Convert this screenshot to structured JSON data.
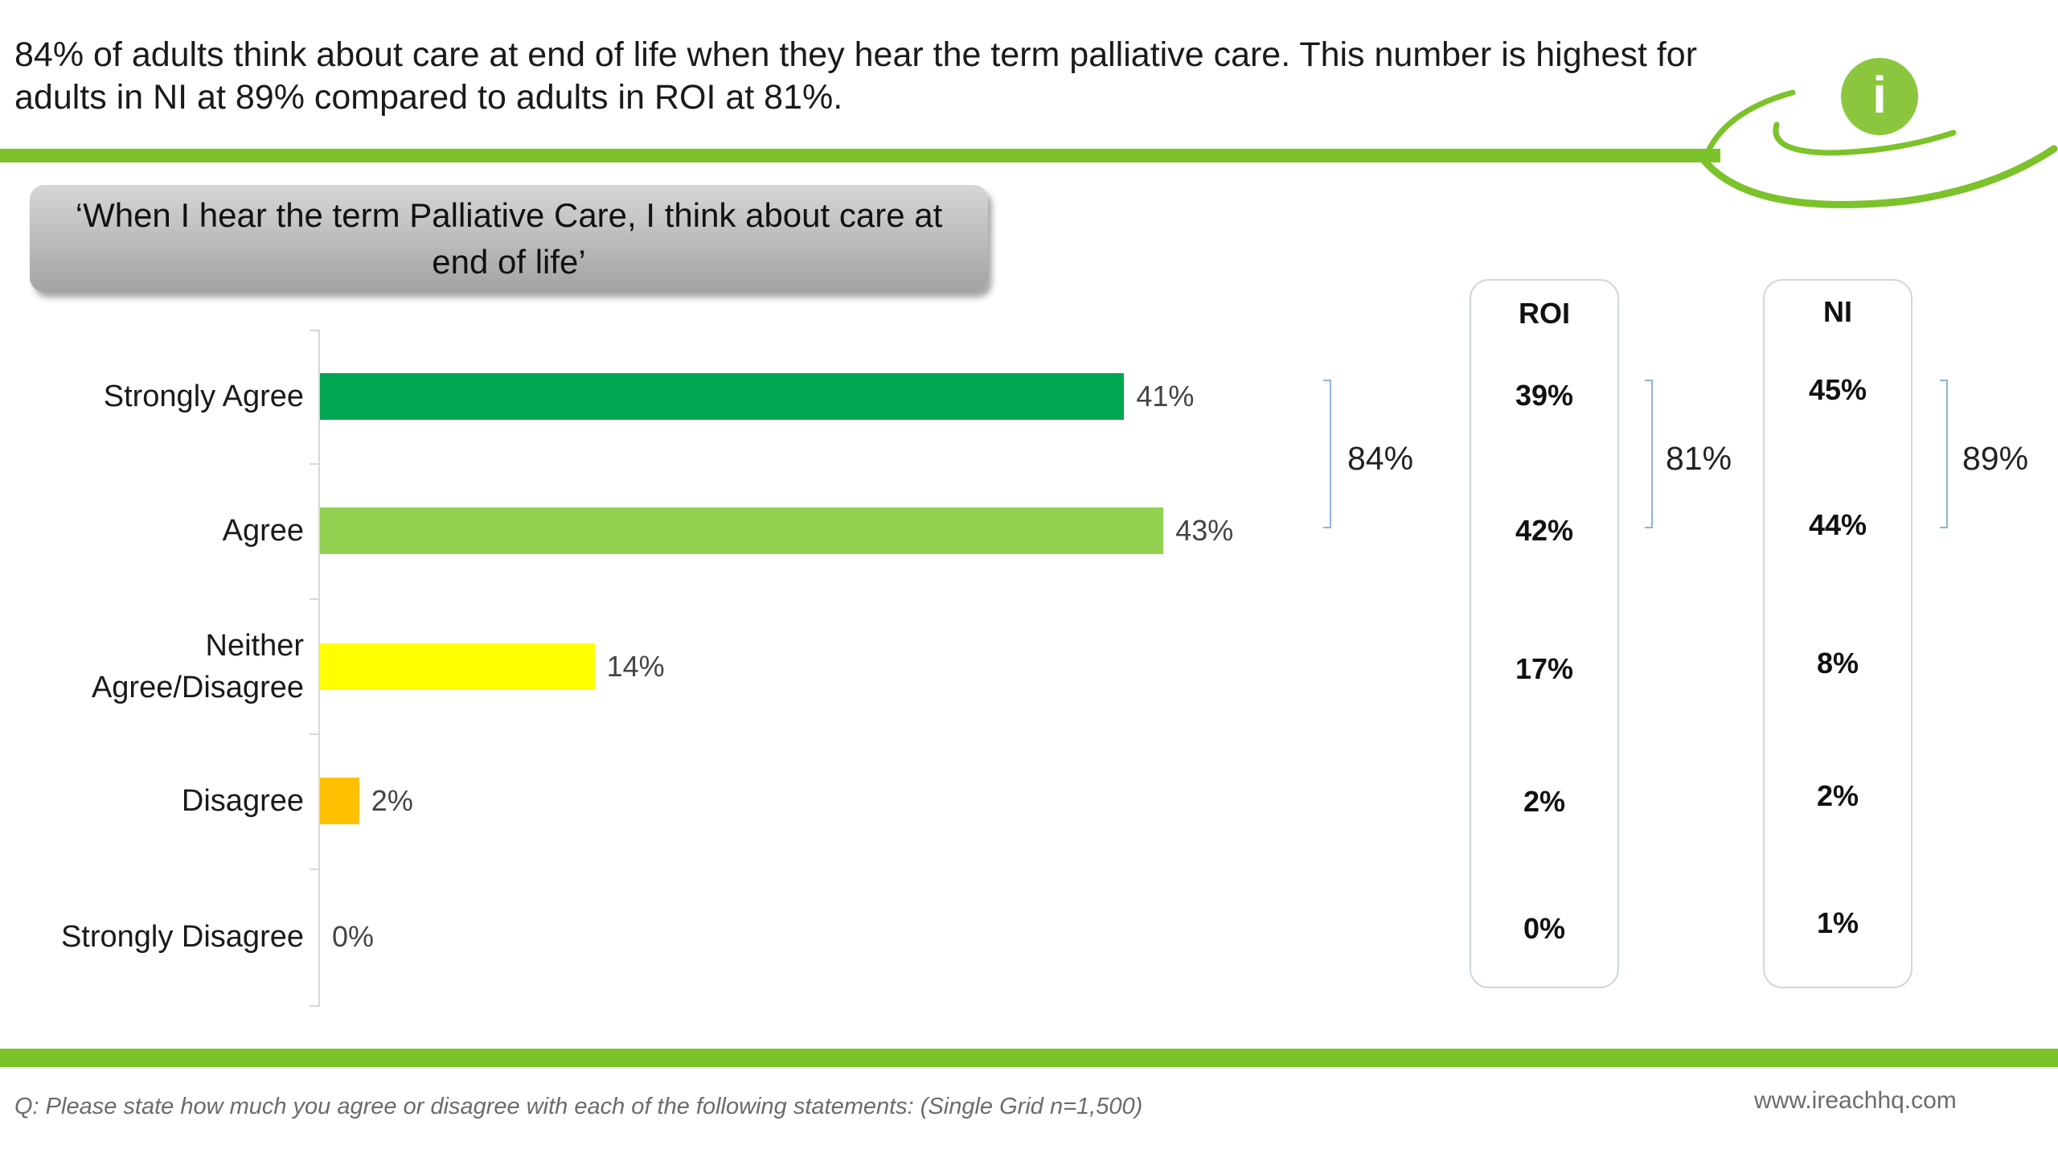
{
  "headline": {
    "line1": "84% of adults think about care at end of life when they hear the term palliative care. This number is highest for",
    "line2": "adults in NI at 89% compared to adults in ROI at 81%."
  },
  "question_box": {
    "line1": "‘When I hear the term Palliative Care, I think about care at",
    "line2": "end of life’"
  },
  "brand": {
    "accent": "#7cc22b",
    "logo_glyph": "i",
    "logo_icon": "info-icon"
  },
  "chart_data": {
    "type": "bar",
    "orientation": "horizontal",
    "categories": [
      "Strongly Agree",
      "Agree",
      "Neither Agree/Disagree",
      "Disagree",
      "Strongly Disagree"
    ],
    "category_lines": [
      [
        "Strongly Agree"
      ],
      [
        "Agree"
      ],
      [
        "Neither",
        "Agree/Disagree"
      ],
      [
        "Disagree"
      ],
      [
        "Strongly Disagree"
      ]
    ],
    "values": [
      41,
      43,
      14,
      2,
      0
    ],
    "value_labels": [
      "41%",
      "43%",
      "14%",
      "2%",
      "0%"
    ],
    "colors": [
      "#00a651",
      "#92d050",
      "#ffff00",
      "#ffc000",
      "#d9d9d9"
    ],
    "xlim": [
      0,
      100
    ],
    "total_agree": "84%",
    "breakdowns": [
      {
        "name": "ROI",
        "values": [
          39,
          42,
          17,
          2,
          0
        ],
        "value_labels": [
          "39%",
          "42%",
          "17%",
          "2%",
          "0%"
        ],
        "total_agree": "81%"
      },
      {
        "name": "NI",
        "values": [
          45,
          44,
          8,
          2,
          1
        ],
        "value_labels": [
          "45%",
          "44%",
          "8%",
          "2%",
          "1%"
        ],
        "total_agree": "89%"
      }
    ]
  },
  "footer": {
    "question": "Q: Please state how much you agree or disagree with each of the following statements: (Single Grid n=1,500)",
    "website": "www.ireachhq.com"
  }
}
